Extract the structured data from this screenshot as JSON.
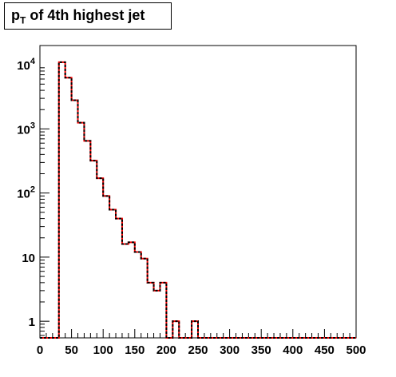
{
  "title": {
    "var": "p",
    "sub": "T",
    "rest": " of 4th highest jet"
  },
  "chart_data": {
    "type": "histogram",
    "y_scale": "log",
    "xlim": [
      0,
      500
    ],
    "ylim": [
      0.55,
      20000
    ],
    "x_ticks": [
      0,
      50,
      100,
      150,
      200,
      250,
      300,
      350,
      400,
      450,
      500
    ],
    "x_tick_labels": [
      "0",
      "50",
      "100",
      "150",
      "200",
      "250",
      "300",
      "350",
      "400",
      "450",
      "500"
    ],
    "y_ticks": [
      1,
      10,
      100,
      1000,
      10000
    ],
    "y_tick_labels": [
      {
        "base": "1",
        "exp": ""
      },
      {
        "base": "10",
        "exp": ""
      },
      {
        "base": "10",
        "exp": "2"
      },
      {
        "base": "10",
        "exp": "3"
      },
      {
        "base": "10",
        "exp": "4"
      }
    ],
    "bin_edges": [
      0,
      10,
      20,
      30,
      40,
      50,
      60,
      70,
      80,
      90,
      100,
      110,
      120,
      130,
      140,
      150,
      160,
      170,
      180,
      190,
      200,
      210,
      220,
      230,
      240,
      250,
      260,
      270,
      280,
      290,
      300,
      310,
      320,
      330,
      340,
      350,
      360,
      370,
      380,
      390,
      400,
      410,
      420,
      430,
      440,
      450,
      460,
      470,
      480,
      490,
      500
    ],
    "series": [
      {
        "color": "#ff0000",
        "style": "solid",
        "values": [
          0,
          0,
          0,
          11000,
          6300,
          2800,
          1250,
          650,
          320,
          170,
          90,
          55,
          40,
          16,
          17,
          12,
          9.5,
          4,
          3,
          4,
          0,
          1,
          0,
          0,
          1,
          0,
          0,
          0,
          0,
          0,
          0,
          0,
          0,
          0,
          0,
          0,
          0,
          0,
          0,
          0,
          0,
          0,
          0,
          0,
          0,
          0,
          0,
          0,
          0,
          0
        ]
      },
      {
        "color": "#000000",
        "style": "dashed",
        "values": [
          0,
          0,
          0,
          11000,
          6300,
          2800,
          1250,
          650,
          320,
          170,
          90,
          55,
          40,
          16,
          17,
          12,
          9.5,
          4,
          3,
          4,
          0,
          1,
          0,
          0,
          1,
          0,
          0,
          0,
          0,
          0,
          0,
          0,
          0,
          0,
          0,
          0,
          0,
          0,
          0,
          0,
          0,
          0,
          0,
          0,
          0,
          0,
          0,
          0,
          0,
          0
        ]
      }
    ]
  }
}
